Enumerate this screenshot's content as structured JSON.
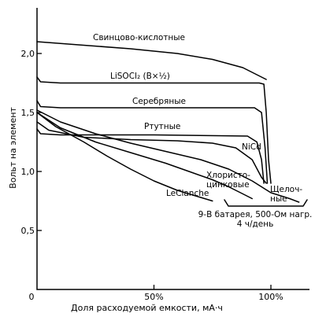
{
  "chart_data": {
    "type": "line",
    "ylabel": "Вольт на элемент",
    "xlabel": "Доля расходуемой емкости, мА·ч",
    "xlim": [
      0,
      120
    ],
    "ylim": [
      0,
      2.35
    ],
    "x_ticks": [
      {
        "value": 0,
        "label": "0"
      },
      {
        "value": 50,
        "label": "50%"
      },
      {
        "value": 100,
        "label": "100%"
      }
    ],
    "y_ticks": [
      {
        "value": 0.5,
        "label": "0,5"
      },
      {
        "value": 1.0,
        "label": "1,0"
      },
      {
        "value": 1.5,
        "label": "1,5"
      },
      {
        "value": 2.0,
        "label": "2,0"
      }
    ],
    "grid": false,
    "series": [
      {
        "name": "Свинцово-кислотные",
        "label_lines": [
          "Свинцово-кислотные"
        ],
        "points": [
          [
            0,
            2.1
          ],
          [
            20,
            2.07
          ],
          [
            40,
            2.04
          ],
          [
            60,
            2.0
          ],
          [
            75,
            1.95
          ],
          [
            88,
            1.88
          ],
          [
            98,
            1.78
          ]
        ]
      },
      {
        "name": "LiSOCl₂ (В×½)",
        "label_lines": [
          "LiSOCl₂ (В×½)"
        ],
        "points": [
          [
            0,
            1.8
          ],
          [
            1.5,
            1.76
          ],
          [
            10,
            1.75
          ],
          [
            50,
            1.75
          ],
          [
            95,
            1.75
          ],
          [
            97,
            1.74
          ],
          [
            98,
            1.5
          ],
          [
            99,
            1.1
          ],
          [
            100,
            0.9
          ]
        ]
      },
      {
        "name": "Серебряные",
        "label_lines": [
          "Серебряные"
        ],
        "points": [
          [
            0,
            1.6
          ],
          [
            1.5,
            1.55
          ],
          [
            10,
            1.54
          ],
          [
            50,
            1.54
          ],
          [
            93,
            1.54
          ],
          [
            96,
            1.5
          ],
          [
            97.5,
            1.2
          ],
          [
            98.5,
            0.9
          ]
        ]
      },
      {
        "name": "Ртутные",
        "label_lines": [
          "Ртутные"
        ],
        "points": [
          [
            0,
            1.36
          ],
          [
            1.5,
            1.32
          ],
          [
            10,
            1.31
          ],
          [
            50,
            1.31
          ],
          [
            90,
            1.3
          ],
          [
            94,
            1.25
          ],
          [
            96,
            1.1
          ],
          [
            97,
            0.9
          ]
        ]
      },
      {
        "name": "NiCd",
        "label_lines": [
          "NiCd"
        ],
        "points": [
          [
            0,
            1.42
          ],
          [
            5,
            1.35
          ],
          [
            20,
            1.29
          ],
          [
            40,
            1.27
          ],
          [
            60,
            1.26
          ],
          [
            75,
            1.24
          ],
          [
            85,
            1.2
          ],
          [
            92,
            1.1
          ],
          [
            96,
            0.95
          ],
          [
            98,
            0.9
          ]
        ]
      },
      {
        "name": "Щелочные",
        "label_lines": [
          "Щелоч-",
          "ные"
        ],
        "points": [
          [
            0,
            1.52
          ],
          [
            10,
            1.42
          ],
          [
            25,
            1.32
          ],
          [
            40,
            1.24
          ],
          [
            55,
            1.17
          ],
          [
            70,
            1.1
          ],
          [
            82,
            1.02
          ],
          [
            92,
            0.92
          ],
          [
            100,
            0.82
          ],
          [
            108,
            0.77
          ],
          [
            112,
            0.74
          ]
        ]
      },
      {
        "name": "Хлористо-цинковые",
        "label_lines": [
          "Хлористо-",
          "цинковые"
        ],
        "points": [
          [
            0,
            1.5
          ],
          [
            10,
            1.37
          ],
          [
            25,
            1.25
          ],
          [
            40,
            1.16
          ],
          [
            55,
            1.07
          ],
          [
            65,
            1.0
          ],
          [
            75,
            0.93
          ],
          [
            82,
            0.87
          ],
          [
            88,
            0.81
          ],
          [
            92,
            0.77
          ]
        ]
      },
      {
        "name": "LeClanche",
        "label_lines": [
          "LeClanche"
        ],
        "points": [
          [
            0,
            1.5
          ],
          [
            8,
            1.38
          ],
          [
            20,
            1.25
          ],
          [
            30,
            1.13
          ],
          [
            40,
            1.02
          ],
          [
            50,
            0.92
          ],
          [
            60,
            0.84
          ],
          [
            70,
            0.78
          ],
          [
            75,
            0.75
          ]
        ]
      }
    ],
    "annotation": [
      "9-В батарея, 500-Ом нагр.",
      "4 ч/день"
    ]
  }
}
